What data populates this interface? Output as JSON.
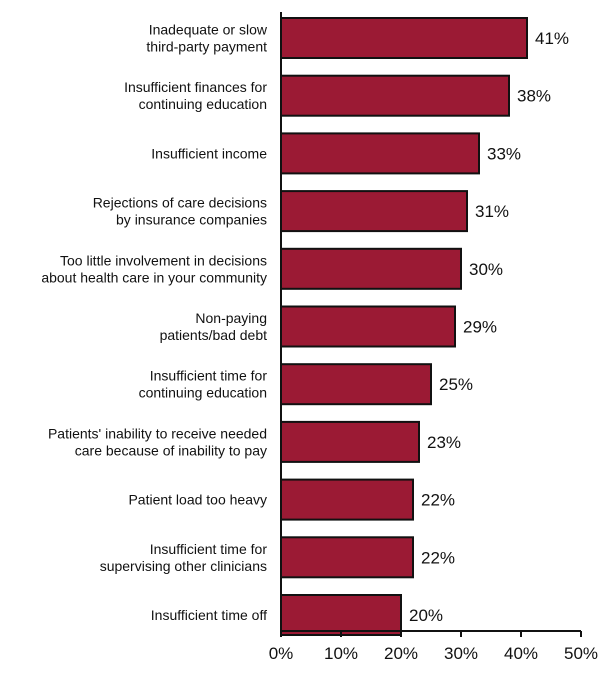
{
  "chart_data": {
    "type": "bar",
    "orientation": "horizontal",
    "categories": [
      [
        "Inadequate or slow",
        "third-party payment"
      ],
      [
        "Insufficient finances for",
        "continuing education"
      ],
      [
        "Insufficient income"
      ],
      [
        "Rejections of care decisions",
        "by insurance companies"
      ],
      [
        "Too little involvement in decisions",
        "about health care in your community"
      ],
      [
        "Non-paying",
        "patients/bad debt"
      ],
      [
        "Insufficient time for",
        "continuing education"
      ],
      [
        "Patients' inability to receive needed",
        "care because of inability to pay"
      ],
      [
        "Patient load too heavy"
      ],
      [
        "Insufficient time for",
        "supervising other clinicians"
      ],
      [
        "Insufficient time off"
      ]
    ],
    "values": [
      41,
      38,
      33,
      31,
      30,
      29,
      25,
      23,
      22,
      22,
      20
    ],
    "value_labels": [
      "41%",
      "38%",
      "33%",
      "31%",
      "30%",
      "29%",
      "25%",
      "23%",
      "22%",
      "22%",
      "20%"
    ],
    "xlim": [
      0,
      50
    ],
    "xticks": [
      0,
      10,
      20,
      30,
      40,
      50
    ],
    "xtick_labels": [
      "0%",
      "10%",
      "20%",
      "30%",
      "40%",
      "50%"
    ],
    "title": "",
    "xlabel": "",
    "ylabel": "",
    "grid": false,
    "bar_color": "#9b1a34",
    "edge_color": "#111111"
  }
}
